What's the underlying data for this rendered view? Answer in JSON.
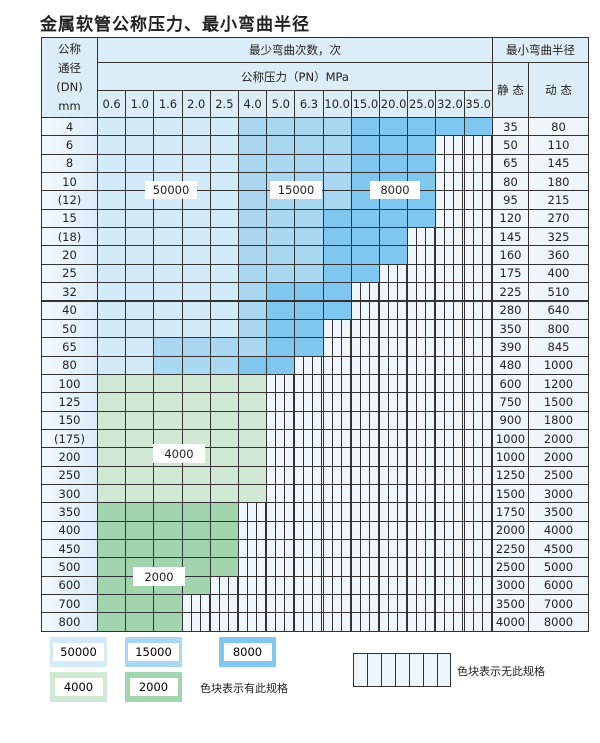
{
  "title": "金属软管公称压力、最小弯曲半径",
  "header": {
    "dn_label": [
      "公称",
      "通径",
      "(DN)",
      "mm"
    ],
    "bends_label": "最少弯曲次数，次",
    "pressure_label": "公称压力（PN）MPa",
    "radius_label": "最小弯曲半径",
    "static_label": "静 态",
    "dynamic_label": "动 态",
    "pressures": [
      "0.6",
      "1.0",
      "1.6",
      "2.0",
      "2.5",
      "4.0",
      "5.0",
      "6.3",
      "10.0",
      "15.0",
      "20.0",
      "25.0",
      "32.0",
      "35.0"
    ]
  },
  "colors": {
    "50000": "#d3eaf8",
    "15000": "#aad8f3",
    "8000": "#7fc7ef",
    "4000": "#d1e8d4",
    "2000": "#a2d4b0"
  },
  "rows": [
    {
      "dn": "4",
      "static": "35",
      "dynamic": "80",
      "bends": [
        50000,
        50000,
        50000,
        50000,
        50000,
        15000,
        15000,
        15000,
        15000,
        8000,
        8000,
        8000,
        8000,
        8000
      ]
    },
    {
      "dn": "6",
      "static": "50",
      "dynamic": "110",
      "bends": [
        50000,
        50000,
        50000,
        50000,
        50000,
        15000,
        15000,
        15000,
        15000,
        8000,
        8000,
        8000,
        null,
        null
      ]
    },
    {
      "dn": "8",
      "static": "65",
      "dynamic": "145",
      "bends": [
        50000,
        50000,
        50000,
        50000,
        50000,
        15000,
        15000,
        15000,
        15000,
        8000,
        8000,
        8000,
        null,
        null
      ]
    },
    {
      "dn": "10",
      "static": "80",
      "dynamic": "180",
      "bends": [
        50000,
        50000,
        50000,
        50000,
        50000,
        15000,
        15000,
        15000,
        15000,
        8000,
        8000,
        8000,
        null,
        null
      ]
    },
    {
      "dn": "(12)",
      "static": "95",
      "dynamic": "215",
      "bends": [
        50000,
        50000,
        50000,
        50000,
        50000,
        15000,
        15000,
        15000,
        15000,
        8000,
        8000,
        8000,
        null,
        null
      ]
    },
    {
      "dn": "15",
      "static": "120",
      "dynamic": "270",
      "bends": [
        50000,
        50000,
        50000,
        50000,
        50000,
        15000,
        15000,
        15000,
        8000,
        8000,
        8000,
        8000,
        null,
        null
      ]
    },
    {
      "dn": "(18)",
      "static": "145",
      "dynamic": "325",
      "bends": [
        50000,
        50000,
        50000,
        50000,
        50000,
        15000,
        15000,
        15000,
        8000,
        8000,
        8000,
        null,
        null,
        null
      ]
    },
    {
      "dn": "20",
      "static": "160",
      "dynamic": "360",
      "bends": [
        50000,
        50000,
        50000,
        50000,
        50000,
        15000,
        15000,
        15000,
        8000,
        8000,
        8000,
        null,
        null,
        null
      ]
    },
    {
      "dn": "25",
      "static": "175",
      "dynamic": "400",
      "bends": [
        50000,
        50000,
        50000,
        50000,
        50000,
        15000,
        15000,
        15000,
        8000,
        8000,
        null,
        null,
        null,
        null
      ]
    },
    {
      "dn": "32",
      "static": "225",
      "dynamic": "510",
      "bends": [
        50000,
        50000,
        50000,
        50000,
        50000,
        15000,
        8000,
        8000,
        8000,
        null,
        null,
        null,
        null,
        null
      ]
    },
    {
      "dn": "40",
      "static": "280",
      "dynamic": "640",
      "bends": [
        50000,
        50000,
        50000,
        50000,
        50000,
        15000,
        8000,
        8000,
        8000,
        null,
        null,
        null,
        null,
        null
      ]
    },
    {
      "dn": "50",
      "static": "350",
      "dynamic": "800",
      "bends": [
        50000,
        50000,
        50000,
        50000,
        50000,
        15000,
        8000,
        8000,
        null,
        null,
        null,
        null,
        null,
        null
      ]
    },
    {
      "dn": "65",
      "static": "390",
      "dynamic": "845",
      "bends": [
        50000,
        50000,
        15000,
        15000,
        15000,
        15000,
        8000,
        8000,
        null,
        null,
        null,
        null,
        null,
        null
      ]
    },
    {
      "dn": "80",
      "static": "480",
      "dynamic": "1000",
      "bends": [
        50000,
        50000,
        15000,
        15000,
        15000,
        8000,
        8000,
        null,
        null,
        null,
        null,
        null,
        null,
        null
      ]
    },
    {
      "dn": "100",
      "static": "600",
      "dynamic": "1200",
      "bends": [
        4000,
        4000,
        4000,
        4000,
        4000,
        4000,
        null,
        null,
        null,
        null,
        null,
        null,
        null,
        null
      ]
    },
    {
      "dn": "125",
      "static": "750",
      "dynamic": "1500",
      "bends": [
        4000,
        4000,
        4000,
        4000,
        4000,
        4000,
        null,
        null,
        null,
        null,
        null,
        null,
        null,
        null
      ]
    },
    {
      "dn": "150",
      "static": "900",
      "dynamic": "1800",
      "bends": [
        4000,
        4000,
        4000,
        4000,
        4000,
        4000,
        null,
        null,
        null,
        null,
        null,
        null,
        null,
        null
      ]
    },
    {
      "dn": "(175)",
      "static": "1000",
      "dynamic": "2000",
      "bends": [
        4000,
        4000,
        4000,
        4000,
        4000,
        4000,
        null,
        null,
        null,
        null,
        null,
        null,
        null,
        null
      ]
    },
    {
      "dn": "200",
      "static": "1000",
      "dynamic": "2000",
      "bends": [
        4000,
        4000,
        4000,
        4000,
        4000,
        4000,
        null,
        null,
        null,
        null,
        null,
        null,
        null,
        null
      ]
    },
    {
      "dn": "250",
      "static": "1250",
      "dynamic": "2500",
      "bends": [
        4000,
        4000,
        4000,
        4000,
        4000,
        4000,
        null,
        null,
        null,
        null,
        null,
        null,
        null,
        null
      ]
    },
    {
      "dn": "300",
      "static": "1500",
      "dynamic": "3000",
      "bends": [
        4000,
        4000,
        4000,
        4000,
        4000,
        4000,
        null,
        null,
        null,
        null,
        null,
        null,
        null,
        null
      ]
    },
    {
      "dn": "350",
      "static": "1750",
      "dynamic": "3500",
      "bends": [
        2000,
        2000,
        2000,
        2000,
        2000,
        null,
        null,
        null,
        null,
        null,
        null,
        null,
        null,
        null
      ]
    },
    {
      "dn": "400",
      "static": "2000",
      "dynamic": "4000",
      "bends": [
        2000,
        2000,
        2000,
        2000,
        2000,
        null,
        null,
        null,
        null,
        null,
        null,
        null,
        null,
        null
      ]
    },
    {
      "dn": "450",
      "static": "2250",
      "dynamic": "4500",
      "bends": [
        2000,
        2000,
        2000,
        2000,
        2000,
        null,
        null,
        null,
        null,
        null,
        null,
        null,
        null,
        null
      ]
    },
    {
      "dn": "500",
      "static": "2500",
      "dynamic": "5000",
      "bends": [
        2000,
        2000,
        2000,
        2000,
        2000,
        null,
        null,
        null,
        null,
        null,
        null,
        null,
        null,
        null
      ]
    },
    {
      "dn": "600",
      "static": "3000",
      "dynamic": "6000",
      "bends": [
        2000,
        2000,
        2000,
        2000,
        null,
        null,
        null,
        null,
        null,
        null,
        null,
        null,
        null,
        null
      ]
    },
    {
      "dn": "700",
      "static": "3500",
      "dynamic": "7000",
      "bends": [
        2000,
        2000,
        2000,
        null,
        null,
        null,
        null,
        null,
        null,
        null,
        null,
        null,
        null,
        null
      ]
    },
    {
      "dn": "800",
      "static": "4000",
      "dynamic": "8000",
      "bends": [
        2000,
        2000,
        2000,
        null,
        null,
        null,
        null,
        null,
        null,
        null,
        null,
        null,
        null,
        null
      ]
    }
  ],
  "region_labels": [
    "50000",
    "15000",
    "8000",
    "4000",
    "2000"
  ],
  "legend": {
    "items": [
      "50000",
      "15000",
      "8000",
      "4000",
      "2000"
    ],
    "has_spec": "色块表示有此规格",
    "no_spec": "色块表示无此规格"
  }
}
